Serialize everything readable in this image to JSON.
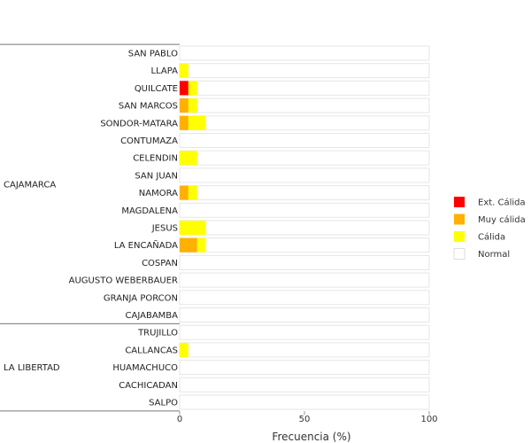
{
  "chart_data": {
    "type": "bar",
    "orientation": "horizontal",
    "stacked": true,
    "title": "",
    "xlabel": "Frecuencia (%)",
    "ylabel": "",
    "xlim": [
      0,
      100
    ],
    "xticks": [
      "0",
      "50",
      "100"
    ],
    "groups": [
      {
        "name": "CAJAMARCA",
        "stations": [
          "SAN PABLO",
          "LLAPA",
          "QUILCATE",
          "SAN MARCOS",
          "SONDOR-MATARA",
          "CONTUMAZA",
          "CELENDIN",
          "SAN JUAN",
          "NAMORA",
          "MAGDALENA",
          "JESUS",
          "LA ENCAÑADA",
          "COSPAN",
          "AUGUSTO WEBERBAUER",
          "GRANJA PORCON",
          "CAJABAMBA"
        ]
      },
      {
        "name": "LA LIBERTAD",
        "stations": [
          "TRUJILLO",
          "CALLANCAS",
          "HUAMACHUCO",
          "CACHICADAN",
          "SALPO"
        ]
      }
    ],
    "categories": [
      "SAN PABLO",
      "LLAPA",
      "QUILCATE",
      "SAN MARCOS",
      "SONDOR-MATARA",
      "CONTUMAZA",
      "CELENDIN",
      "SAN JUAN",
      "NAMORA",
      "MAGDALENA",
      "JESUS",
      "LA ENCAÑADA",
      "COSPAN",
      "AUGUSTO WEBERBAUER",
      "GRANJA PORCON",
      "CAJABAMBA",
      "TRUJILLO",
      "CALLANCAS",
      "HUAMACHUCO",
      "CACHICADAN",
      "SALPO"
    ],
    "series": [
      {
        "name": "Ext. Cálida",
        "color": "#ff0000",
        "values": [
          0,
          0,
          3.5,
          0,
          0,
          0,
          0,
          0,
          0,
          0,
          0,
          0,
          0,
          0,
          0,
          0,
          0,
          0,
          0,
          0,
          0
        ]
      },
      {
        "name": "Muy cálida",
        "color": "#ffb000",
        "values": [
          0,
          0,
          0,
          3.5,
          3.5,
          0,
          0,
          0,
          3.5,
          0,
          0,
          7,
          0,
          0,
          0,
          0,
          0,
          0,
          0,
          0,
          0
        ]
      },
      {
        "name": "Cálida",
        "color": "#ffff00",
        "values": [
          0,
          3.5,
          3.5,
          3.5,
          7,
          0,
          7,
          0,
          3.5,
          0,
          10.5,
          3.5,
          0,
          0,
          0,
          0,
          0,
          3.5,
          0,
          0,
          0
        ]
      },
      {
        "name": "Normal",
        "color": "#ffffff",
        "values": [
          100,
          96.5,
          93,
          93,
          89.5,
          100,
          93,
          100,
          93,
          100,
          89.5,
          89.5,
          100,
          100,
          100,
          100,
          100,
          96.5,
          100,
          100,
          100
        ]
      }
    ],
    "legend_position": "right",
    "grid": false
  }
}
